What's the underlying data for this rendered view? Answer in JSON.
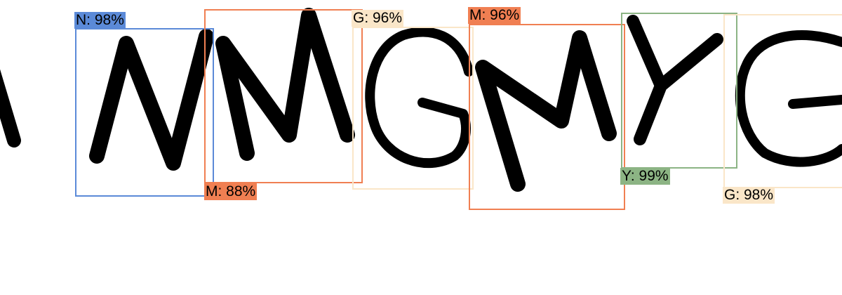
{
  "detections": [
    {
      "id": "n1",
      "label": "N: 98%",
      "color": "#5b8ad8"
    },
    {
      "id": "m1",
      "label": "M: 88%",
      "color": "#f07f52"
    },
    {
      "id": "g1",
      "label": "G: 96%",
      "color": "#fae6c8"
    },
    {
      "id": "m2",
      "label": "M: 96%",
      "color": "#f07f52"
    },
    {
      "id": "y1",
      "label": "Y: 99%",
      "color": "#8cb484"
    },
    {
      "id": "g2",
      "label": "G: 98%",
      "color": "#fae6c8"
    }
  ]
}
